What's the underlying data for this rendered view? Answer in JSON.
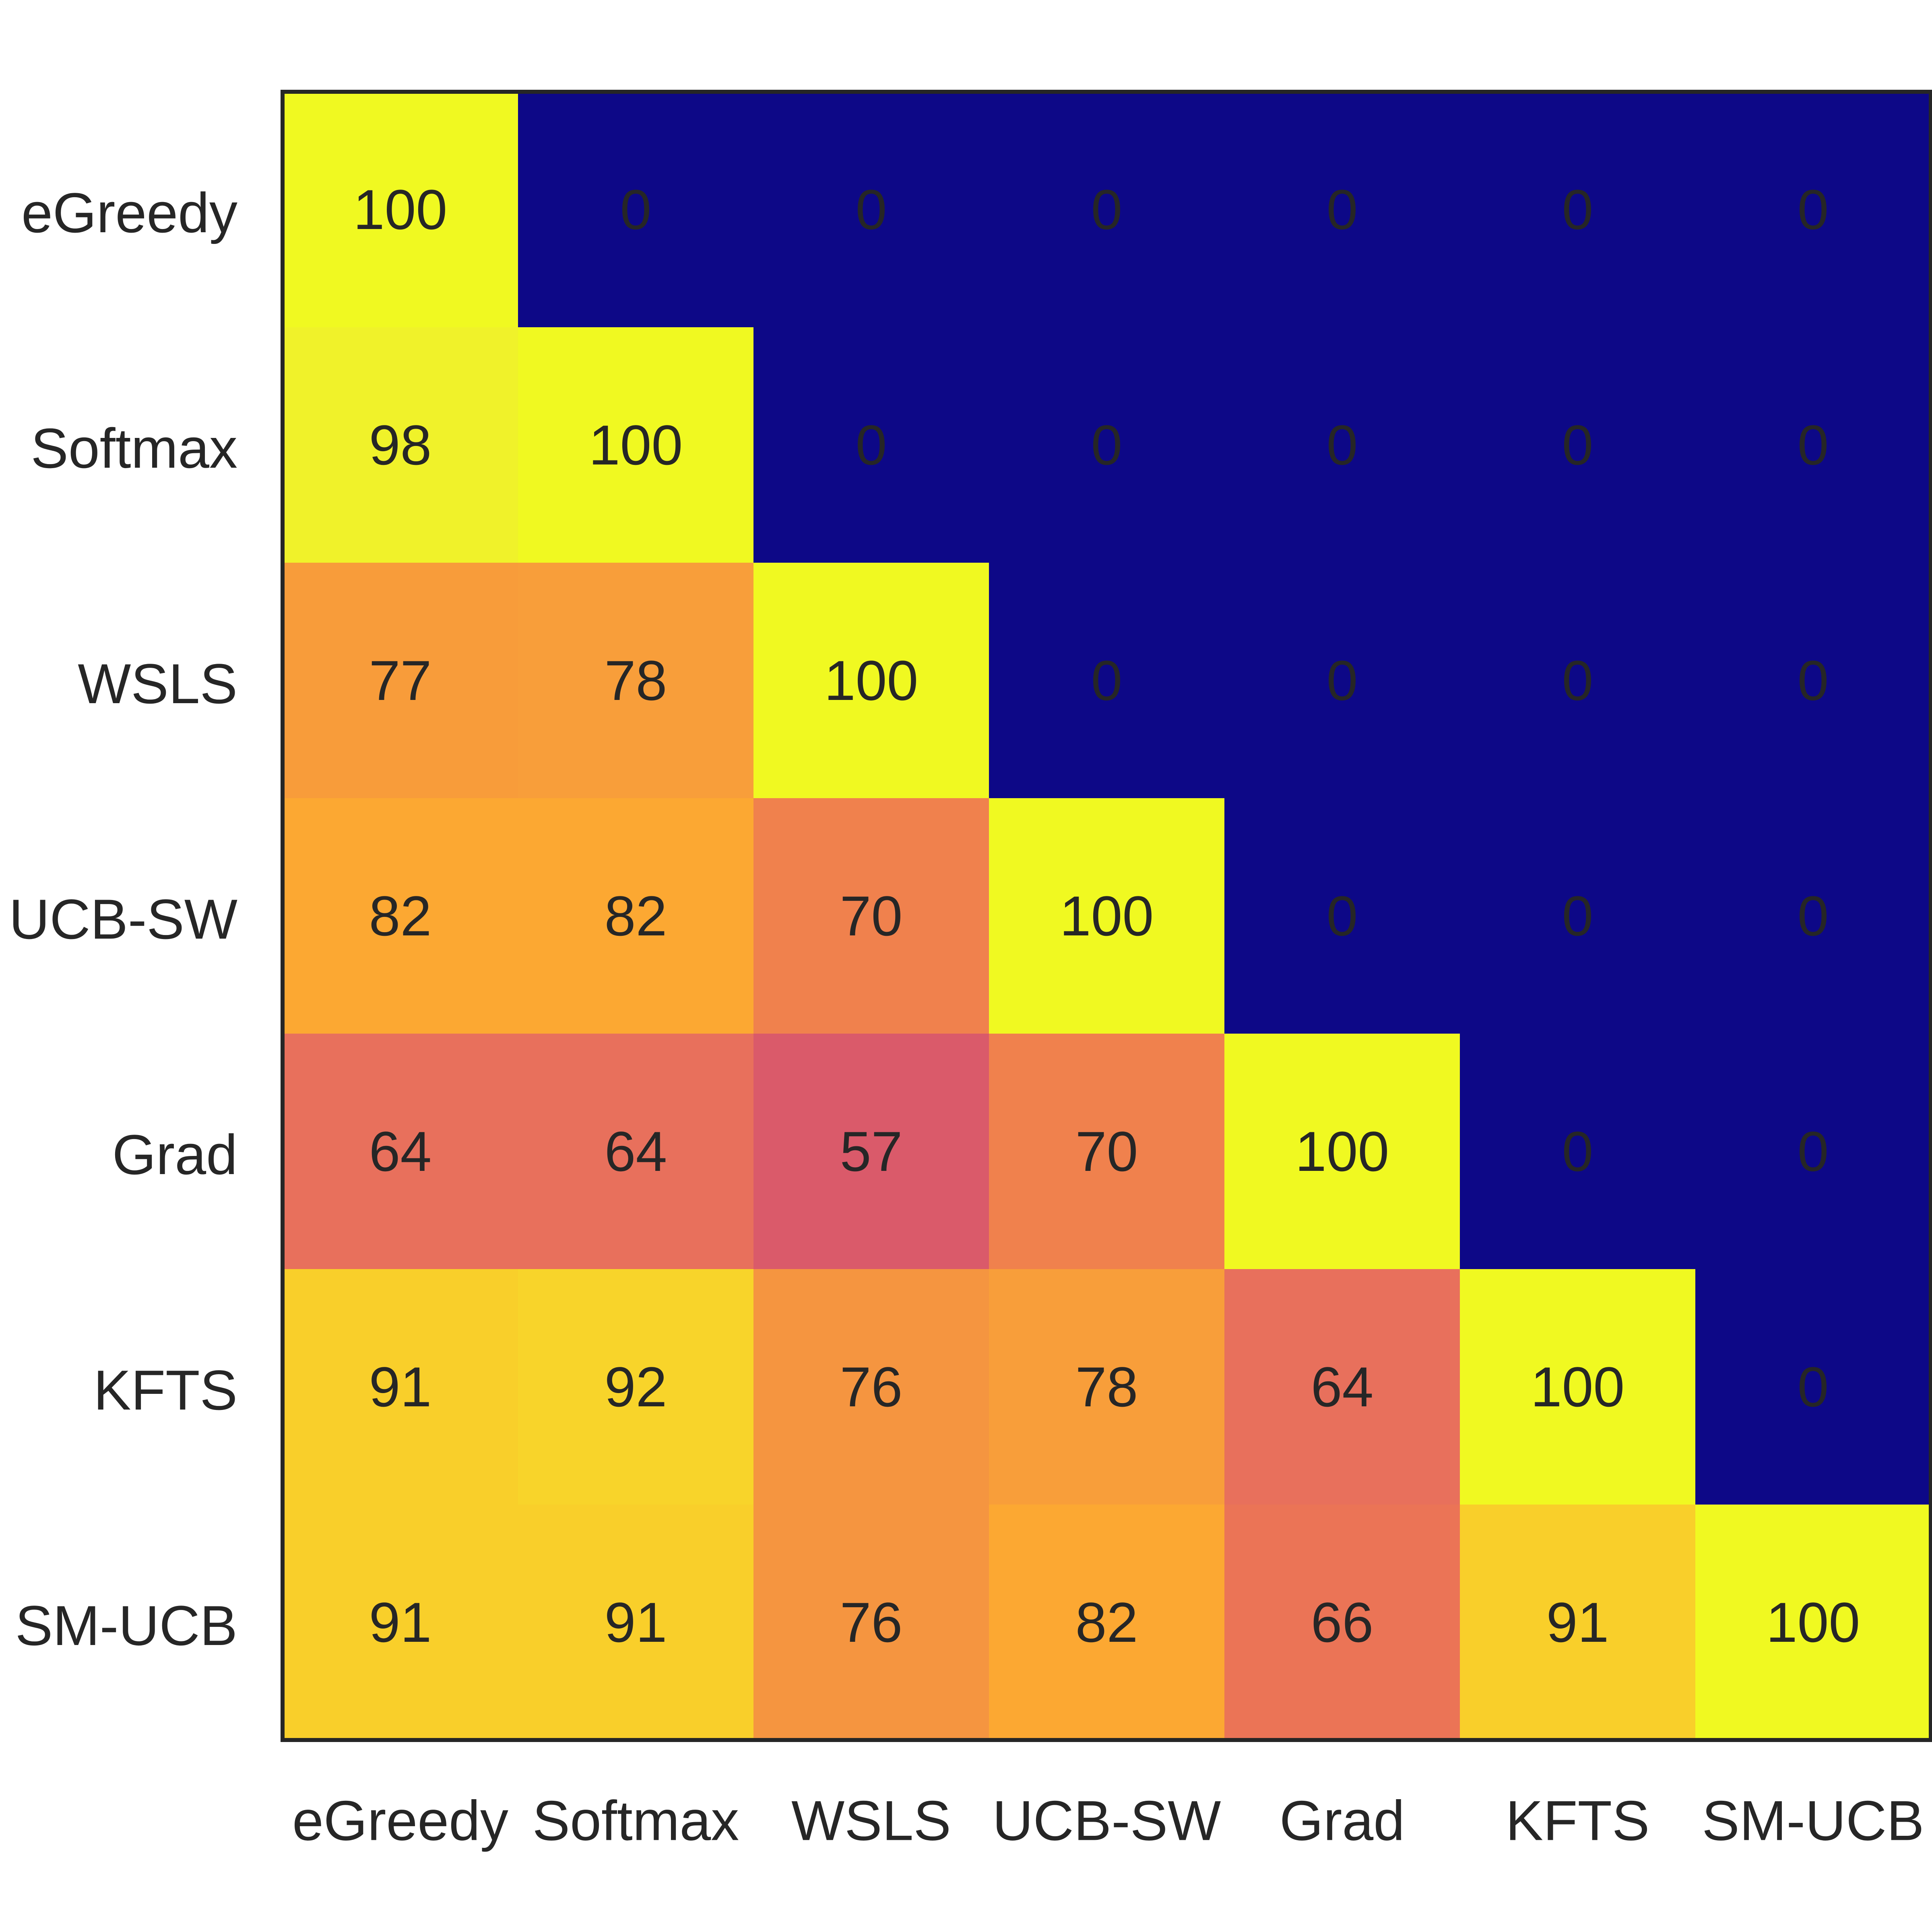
{
  "chart_data": {
    "type": "heatmap",
    "title": "",
    "xlabel": "",
    "ylabel": "",
    "rows": [
      "eGreedy",
      "Softmax",
      "WSLS",
      "UCB-SW",
      "Grad",
      "KFTS",
      "SM-UCB"
    ],
    "columns": [
      "eGreedy",
      "Softmax",
      "WSLS",
      "UCB-SW",
      "Grad",
      "KFTS",
      "SM-UCB"
    ],
    "values": [
      [
        100,
        0,
        0,
        0,
        0,
        0,
        0
      ],
      [
        98,
        100,
        0,
        0,
        0,
        0,
        0
      ],
      [
        77,
        78,
        100,
        0,
        0,
        0,
        0
      ],
      [
        82,
        82,
        70,
        100,
        0,
        0,
        0
      ],
      [
        64,
        64,
        57,
        70,
        100,
        0,
        0
      ],
      [
        91,
        92,
        76,
        78,
        64,
        100,
        0
      ],
      [
        91,
        91,
        76,
        82,
        66,
        91,
        100
      ]
    ],
    "colormap": "plasma",
    "color_range": [
      0,
      100
    ],
    "value_colors": {
      "0": "#0d0887",
      "57": "#da5a6a",
      "64": "#e8705c",
      "66": "#eb7456",
      "70": "#f0814d",
      "76": "#f59540",
      "77": "#f89c3a",
      "78": "#f89e3a",
      "82": "#fca832",
      "91": "#f9cf2a",
      "92": "#f8d42a",
      "98": "#f0f22a",
      "100": "#f0f921"
    },
    "grid": false,
    "legend": "none",
    "annotations": "cell values shown in each cell"
  }
}
